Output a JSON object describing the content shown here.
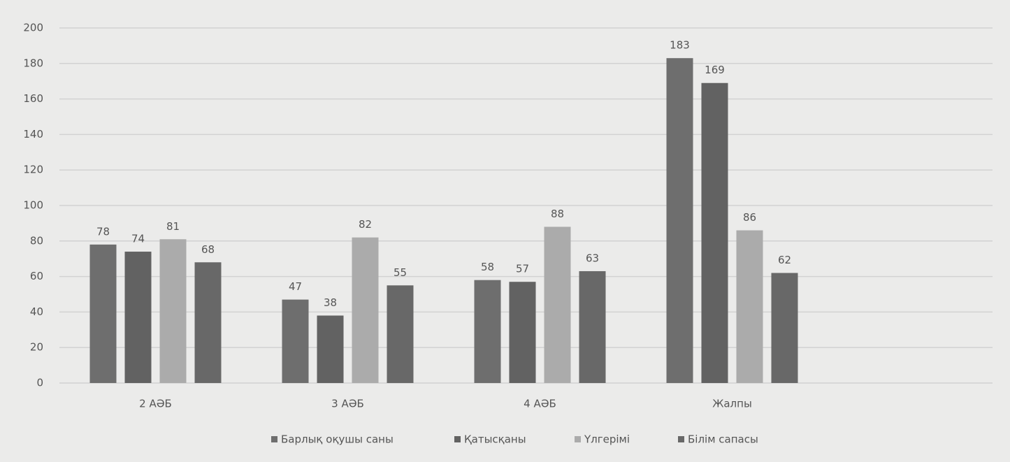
{
  "chart_data": {
    "type": "bar",
    "categories": [
      "2 АӘБ",
      "3 АӘБ",
      "4 АӘБ",
      "Жалпы"
    ],
    "series": [
      {
        "name": "Барлық оқушы саны",
        "color": "#6e6e6e",
        "values": [
          78,
          47,
          58,
          183
        ]
      },
      {
        "name": "Қатысқаны",
        "color": "#626262",
        "values": [
          74,
          38,
          57,
          169
        ]
      },
      {
        "name": "Үлгерімі",
        "color": "#ababab",
        "values": [
          81,
          82,
          88,
          86
        ]
      },
      {
        "name": "Білім сапасы",
        "color": "#686868",
        "values": [
          68,
          55,
          63,
          62
        ]
      }
    ],
    "ylim": [
      0,
      200
    ],
    "yticks": [
      0,
      20,
      40,
      60,
      80,
      100,
      120,
      140,
      160,
      180,
      200
    ],
    "grid": true,
    "legend": "bottom",
    "data_labels": true
  }
}
